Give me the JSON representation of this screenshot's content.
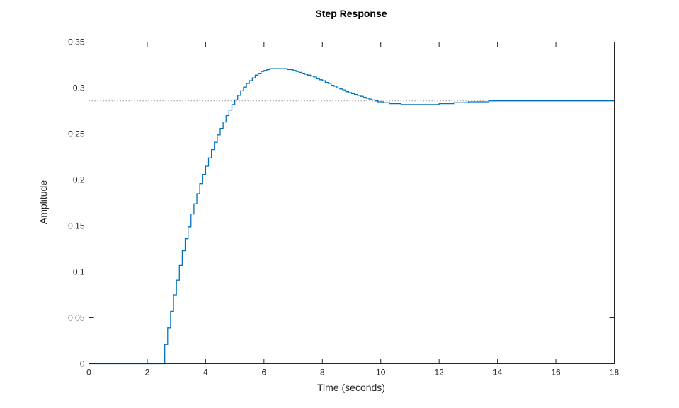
{
  "chart_data": {
    "type": "line",
    "style": "stairs",
    "title": "Step Response",
    "xlabel": "Time (seconds)",
    "ylabel": "Amplitude",
    "xlim": [
      0,
      18
    ],
    "ylim": [
      0,
      0.35
    ],
    "xticks": [
      "0",
      "2",
      "4",
      "6",
      "8",
      "10",
      "12",
      "14",
      "16",
      "18"
    ],
    "yticks": [
      "0",
      "0.05",
      "0.1",
      "0.15",
      "0.2",
      "0.25",
      "0.3",
      "0.35"
    ],
    "grid": false,
    "line_color": "#0072BD",
    "steady_state_value": 0.286,
    "steady_state_line_color": "#999999",
    "series": [
      {
        "t_start": 2.5,
        "sample_time": 0.1,
        "values": [
          0,
          0.021,
          0.039,
          0.057,
          0.075,
          0.091,
          0.107,
          0.123,
          0.136,
          0.149,
          0.163,
          0.174,
          0.185,
          0.196,
          0.206,
          0.215,
          0.224,
          0.233,
          0.241,
          0.249,
          0.256,
          0.263,
          0.27,
          0.276,
          0.282,
          0.287,
          0.292,
          0.297,
          0.301,
          0.305,
          0.308,
          0.311,
          0.314,
          0.316,
          0.318,
          0.319,
          0.32,
          0.321,
          0.321,
          0.321,
          0.321,
          0.321,
          0.321,
          0.32,
          0.32,
          0.319,
          0.318,
          0.317,
          0.316,
          0.315,
          0.314,
          0.313,
          0.312,
          0.31,
          0.309,
          0.308,
          0.306,
          0.305,
          0.303,
          0.302,
          0.3,
          0.299,
          0.298,
          0.296,
          0.295,
          0.294,
          0.293,
          0.292,
          0.291,
          0.29,
          0.289,
          0.288,
          0.287,
          0.286,
          0.285,
          0.285,
          0.284,
          0.284,
          0.283,
          0.283,
          0.283,
          0.283,
          0.282,
          0.282,
          0.282,
          0.282,
          0.282,
          0.282,
          0.282,
          0.282,
          0.282,
          0.282,
          0.282,
          0.282,
          0.282,
          0.283,
          0.283,
          0.283,
          0.283,
          0.283,
          0.284,
          0.284,
          0.284,
          0.284,
          0.284,
          0.285,
          0.285,
          0.285,
          0.285,
          0.285,
          0.285,
          0.285,
          0.286,
          0.286,
          0.286,
          0.286,
          0.286
        ]
      }
    ]
  }
}
